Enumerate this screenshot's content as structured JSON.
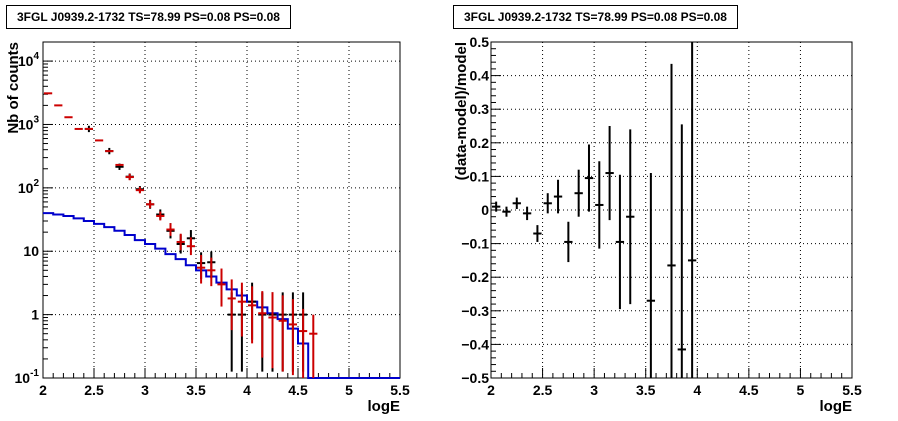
{
  "chart_data": [
    {
      "type": "line",
      "title": "3FGL J0939.2-1732 TS=78.99 PS=0.08 PS=0.08",
      "xlabel": "logE",
      "ylabel": "Nb of counts",
      "xlim": [
        2,
        5.5
      ],
      "ylim": [
        0.1,
        20000
      ],
      "yscale": "log",
      "grid": true,
      "x_ticks": [
        "2",
        "2.5",
        "3",
        "3.5",
        "4",
        "4.5",
        "5",
        "5.5"
      ],
      "y_ticks": [
        {
          "value": 0.1,
          "label": "10",
          "exp": "-1"
        },
        {
          "value": 1,
          "label": "1",
          "exp": ""
        },
        {
          "value": 10,
          "label": "10",
          "exp": ""
        },
        {
          "value": 100,
          "label": "10",
          "exp": "2"
        },
        {
          "value": 1000,
          "label": "10",
          "exp": "3"
        },
        {
          "value": 10000,
          "label": "10",
          "exp": "4"
        }
      ],
      "series": [
        {
          "color": "#0000cc",
          "style": "step",
          "bin_width": 0.1,
          "x": [
            2.05,
            2.15,
            2.25,
            2.35,
            2.45,
            2.55,
            2.65,
            2.75,
            2.85,
            2.95,
            3.05,
            3.15,
            3.25,
            3.35,
            3.45,
            3.55,
            3.65,
            3.75,
            3.85,
            3.95,
            4.05,
            4.15,
            4.25,
            4.35,
            4.45,
            4.55,
            4.65,
            4.75,
            4.85,
            4.95,
            5.05,
            5.15,
            5.25,
            5.35,
            5.45
          ],
          "values": [
            40,
            38,
            36,
            33,
            30,
            27,
            24,
            21,
            18,
            15,
            13,
            11,
            9,
            7.5,
            6,
            5,
            4,
            3.2,
            2.5,
            2,
            1.6,
            1.3,
            1.05,
            0.85,
            0.6,
            0.35,
            0.1,
            0.1,
            0.1,
            0.1,
            0.1,
            0.1,
            0.1,
            0.1,
            0.1
          ]
        },
        {
          "color": "#000000",
          "style": "errorbar",
          "bin_width": 0.1,
          "x": [
            2.45,
            2.65,
            2.75,
            2.85,
            2.95,
            3.05,
            3.15,
            3.25,
            3.35,
            3.45,
            3.55,
            3.65,
            3.85,
            3.95,
            4.05,
            4.15,
            4.25,
            4.35,
            4.45,
            4.55
          ],
          "values": [
            850,
            380,
            215,
            150,
            95,
            55,
            38,
            21,
            13,
            16,
            6.5,
            6.7,
            1,
            1,
            1.6,
            1,
            1,
            1,
            1,
            1
          ],
          "err_low": [
            0.05,
            0.05,
            0.05,
            0.05,
            0.05,
            0.07,
            0.08,
            0.12,
            0.15,
            0.13,
            0.25,
            0.25,
            0.9,
            0.9,
            0.6,
            0.9,
            0.9,
            0.9,
            0.9,
            0.9
          ],
          "err_high": [
            0.05,
            0.05,
            0.05,
            0.05,
            0.05,
            0.07,
            0.08,
            0.12,
            0.15,
            0.13,
            0.17,
            0.17,
            0.35,
            0.35,
            0.3,
            0.35,
            0.35,
            0.35,
            0.35,
            0.35
          ]
        },
        {
          "color": "#cc0000",
          "style": "errorbar",
          "bin_width": 0.1,
          "x": [
            2.05,
            2.15,
            2.25,
            2.35,
            2.45,
            2.55,
            2.65,
            2.75,
            2.85,
            2.95,
            3.05,
            3.15,
            3.25,
            3.35,
            3.45,
            3.55,
            3.65,
            3.75,
            3.85,
            3.95,
            4.05,
            4.15,
            4.25,
            4.35,
            4.45,
            4.55,
            4.65
          ],
          "values": [
            3100,
            2000,
            1300,
            850,
            850,
            560,
            380,
            230,
            148,
            92,
            55,
            36,
            22,
            14,
            12,
            5.5,
            5,
            3,
            1.8,
            1.6,
            1.4,
            1.05,
            0.9,
            0.8,
            0.7,
            0.55,
            0.5
          ],
          "err_low": [
            0,
            0,
            0,
            0,
            0,
            0,
            0,
            0,
            0.05,
            0.05,
            0.06,
            0.07,
            0.1,
            0.13,
            0.14,
            0.25,
            0.25,
            0.35,
            0.5,
            0.55,
            0.6,
            0.7,
            0.8,
            0.8,
            0.8,
            0.8,
            0.8
          ],
          "err_high": [
            0,
            0,
            0,
            0,
            0,
            0,
            0,
            0,
            0.05,
            0.05,
            0.06,
            0.07,
            0.1,
            0.13,
            0.14,
            0.2,
            0.2,
            0.25,
            0.3,
            0.3,
            0.3,
            0.35,
            0.4,
            0.4,
            0.4,
            0.35,
            0.3
          ]
        }
      ]
    },
    {
      "type": "scatter",
      "title": "3FGL J0939.2-1732 TS=78.99 PS=0.08 PS=0.08",
      "xlabel": "logE",
      "ylabel": "(data-model)/model",
      "xlim": [
        2,
        5.5
      ],
      "ylim": [
        -0.5,
        0.5
      ],
      "grid": true,
      "x_ticks": [
        "2",
        "2.5",
        "3",
        "3.5",
        "4",
        "4.5",
        "5",
        "5.5"
      ],
      "y_ticks": [
        "−0.5",
        "−0.4",
        "−0.3",
        "−0.2",
        "−0.1",
        "0",
        "0.1",
        "0.2",
        "0.3",
        "0.4",
        "0.5"
      ],
      "series": [
        {
          "color": "#000000",
          "style": "errorbar",
          "bin_width": 0.1,
          "x": [
            2.05,
            2.15,
            2.25,
            2.35,
            2.45,
            2.55,
            2.65,
            2.75,
            2.85,
            2.95,
            3.05,
            3.15,
            3.25,
            3.35,
            3.55,
            3.75,
            3.85,
            3.95
          ],
          "values": [
            0.01,
            -0.005,
            0.02,
            -0.01,
            -0.07,
            0.02,
            0.04,
            -0.095,
            0.05,
            0.095,
            0.015,
            0.11,
            -0.095,
            -0.02,
            -0.27,
            -0.165,
            -0.415,
            -0.15
          ],
          "err": [
            0.015,
            0.015,
            0.017,
            0.02,
            0.025,
            0.03,
            0.05,
            0.06,
            0.07,
            0.1,
            0.13,
            0.14,
            0.2,
            0.26,
            0.38,
            0.6,
            0.67,
            0.65
          ]
        }
      ]
    }
  ]
}
